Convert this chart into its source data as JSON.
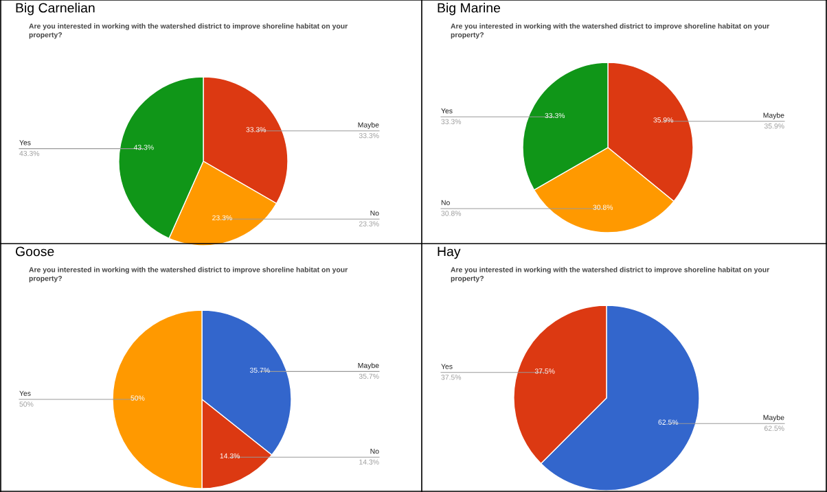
{
  "chart_data": [
    {
      "type": "pie",
      "title": "Big Carnelian",
      "subtitle": "Are you interested in working with the watershed district to improve shoreline habitat on your property?",
      "categories": [
        "Maybe",
        "No",
        "Yes"
      ],
      "values": [
        33.3,
        23.3,
        43.3
      ],
      "colors": [
        "#dc3912",
        "#ff9900",
        "#109618"
      ],
      "value_labels": [
        "33.3%",
        "23.3%",
        "43.3%"
      ],
      "legend": false
    },
    {
      "type": "pie",
      "title": "Big Marine",
      "subtitle": "Are you interested in working with the watershed district to improve shoreline habitat on your property?",
      "categories": [
        "Maybe",
        "No",
        "Yes"
      ],
      "values": [
        35.9,
        30.8,
        33.3
      ],
      "colors": [
        "#dc3912",
        "#ff9900",
        "#109618"
      ],
      "value_labels": [
        "35.9%",
        "30.8%",
        "33.3%"
      ],
      "legend": false
    },
    {
      "type": "pie",
      "title": "Goose",
      "subtitle": "Are you interested in working with the watershed district to improve shoreline habitat on your property?",
      "categories": [
        "Maybe",
        "No",
        "Yes"
      ],
      "values": [
        35.7,
        14.3,
        50
      ],
      "colors": [
        "#3366cc",
        "#dc3912",
        "#ff9900"
      ],
      "value_labels": [
        "35.7%",
        "14.3%",
        "50%"
      ],
      "legend": false
    },
    {
      "type": "pie",
      "title": "Hay",
      "subtitle": "Are you interested in working with the watershed district to improve shoreline habitat on your property?",
      "categories": [
        "Maybe",
        "Yes"
      ],
      "values": [
        62.5,
        37.5
      ],
      "colors": [
        "#3366cc",
        "#dc3912"
      ],
      "value_labels": [
        "62.5%",
        "37.5%"
      ],
      "legend": false
    }
  ]
}
